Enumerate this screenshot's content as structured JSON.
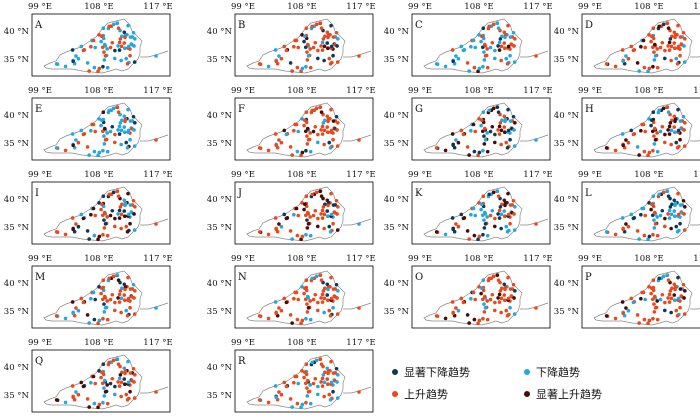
{
  "axis": {
    "lon_labels": [
      "99 °E",
      "108 °E",
      "117 °E"
    ],
    "lat_labels": [
      "40 °N",
      "35 °N"
    ]
  },
  "panels": [
    {
      "label": "A",
      "mix": [
        0.1,
        0.55,
        0.33,
        0.02
      ]
    },
    {
      "label": "B",
      "mix": [
        0.1,
        0.2,
        0.62,
        0.08
      ]
    },
    {
      "label": "C",
      "mix": [
        0.1,
        0.5,
        0.36,
        0.04
      ]
    },
    {
      "label": "D",
      "mix": [
        0.05,
        0.15,
        0.7,
        0.1
      ]
    },
    {
      "label": "E",
      "mix": [
        0.1,
        0.55,
        0.33,
        0.02
      ]
    },
    {
      "label": "F",
      "mix": [
        0.05,
        0.15,
        0.7,
        0.1
      ]
    },
    {
      "label": "G",
      "mix": [
        0.2,
        0.25,
        0.3,
        0.25
      ]
    },
    {
      "label": "H",
      "mix": [
        0.12,
        0.2,
        0.38,
        0.3
      ]
    },
    {
      "label": "I",
      "mix": [
        0.2,
        0.3,
        0.3,
        0.2
      ]
    },
    {
      "label": "J",
      "mix": [
        0.15,
        0.2,
        0.45,
        0.2
      ]
    },
    {
      "label": "K",
      "mix": [
        0.2,
        0.25,
        0.35,
        0.2
      ]
    },
    {
      "label": "L",
      "mix": [
        0.15,
        0.5,
        0.28,
        0.07
      ]
    },
    {
      "label": "M",
      "mix": [
        0.08,
        0.25,
        0.57,
        0.1
      ]
    },
    {
      "label": "N",
      "mix": [
        0.05,
        0.2,
        0.65,
        0.1
      ]
    },
    {
      "label": "O",
      "mix": [
        0.05,
        0.15,
        0.7,
        0.1
      ]
    },
    {
      "label": "P",
      "mix": [
        0.05,
        0.2,
        0.65,
        0.1
      ]
    },
    {
      "label": "Q",
      "mix": [
        0.08,
        0.2,
        0.62,
        0.1
      ]
    },
    {
      "label": "R",
      "mix": [
        0.05,
        0.3,
        0.6,
        0.05
      ]
    }
  ],
  "colors": {
    "sig_decrease": "#0b3a5a",
    "decrease": "#23a7e0",
    "increase": "#e8491d",
    "sig_increase": "#4a0c08",
    "border": "#888888",
    "frame": "#000000"
  },
  "legend": {
    "sig_decrease": "显著下降趋势",
    "decrease": "下降趋势",
    "increase": "上升趋势",
    "sig_increase": "显著上升趋势"
  }
}
